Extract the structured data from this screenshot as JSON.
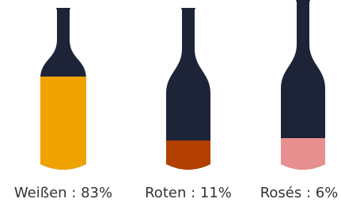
{
  "items": [
    {
      "label": "Weißen : 83%",
      "color": "#f0a202"
    },
    {
      "label": "Roten : 11%",
      "color": "#b34000"
    },
    {
      "label": "Rosés : 6%",
      "color": "#e88f8f"
    }
  ],
  "bottle_color": "#1d2438"
}
